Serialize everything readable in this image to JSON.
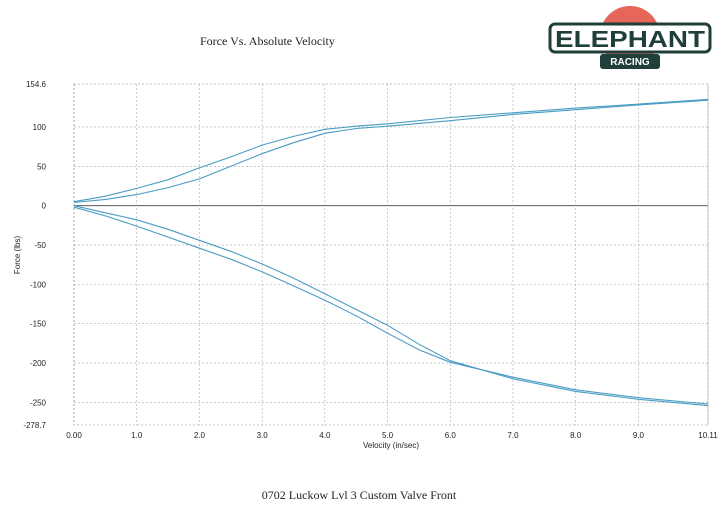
{
  "caption": "0702 Luckow Lvl 3 Custom Valve Front",
  "logo": {
    "line1": "ELEPHANT",
    "line2": "RACING",
    "colors": {
      "dark": "#1f3f3a",
      "accent": "#e7665a"
    }
  },
  "chart_data": {
    "type": "line",
    "title": "Force Vs. Absolute Velocity",
    "xlabel": "Velocity (in/sec)",
    "ylabel": "Force (lbs)",
    "xlim": [
      0,
      10.11
    ],
    "ylim": [
      -278.7,
      154.6
    ],
    "x_ticks": [
      "0.00",
      "1.0",
      "2.0",
      "3.0",
      "4.0",
      "5.0",
      "6.0",
      "7.0",
      "8.0",
      "9.0",
      "10.11"
    ],
    "x_tick_values": [
      0,
      1,
      2,
      3,
      4,
      5,
      6,
      7,
      8,
      9,
      10.11
    ],
    "y_ticks": [
      "154.6",
      "100",
      "50",
      "0",
      "-50",
      "-100",
      "-150",
      "-200",
      "-250",
      "-278.7"
    ],
    "y_tick_values": [
      154.6,
      100,
      50,
      0,
      -50,
      -100,
      -150,
      -200,
      -250,
      -278.7
    ],
    "grid": true,
    "line_color": "#4a9cc4",
    "series": [
      {
        "x": [
          0,
          0.5,
          1,
          1.5,
          2,
          2.5,
          3,
          3.5,
          4,
          4.5,
          5,
          6,
          7,
          8,
          9,
          10.11
        ],
        "values": [
          5,
          12,
          22,
          33,
          48,
          62,
          77,
          88,
          97,
          101,
          104,
          112,
          118,
          124,
          129,
          135
        ]
      },
      {
        "x": [
          0,
          0.5,
          1,
          1.5,
          2,
          2.5,
          3,
          3.5,
          4,
          4.5,
          5,
          6,
          7,
          8,
          9,
          10.11
        ],
        "values": [
          4,
          8,
          14,
          23,
          34,
          50,
          66,
          80,
          92,
          98,
          101,
          108,
          116,
          122,
          128,
          134
        ]
      },
      {
        "x": [
          0,
          0.5,
          1,
          1.5,
          2,
          2.5,
          3,
          3.5,
          4,
          4.5,
          5,
          5.5,
          6,
          7,
          8,
          9,
          10.11
        ],
        "values": [
          0,
          -9,
          -18,
          -30,
          -44,
          -58,
          -74,
          -92,
          -112,
          -132,
          -152,
          -176,
          -197,
          -220,
          -236,
          -246,
          -254
        ]
      },
      {
        "x": [
          0,
          0.5,
          1,
          1.5,
          2,
          2.5,
          3,
          3.5,
          4,
          4.5,
          5,
          5.5,
          6,
          7,
          8,
          9,
          10.11
        ],
        "values": [
          -2,
          -13,
          -26,
          -40,
          -54,
          -68,
          -84,
          -102,
          -120,
          -140,
          -162,
          -183,
          -199,
          -218,
          -234,
          -244,
          -252
        ]
      }
    ]
  }
}
